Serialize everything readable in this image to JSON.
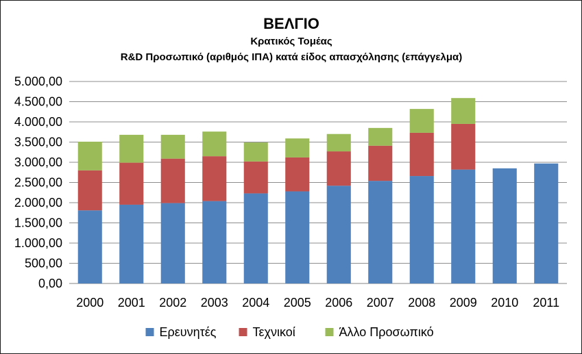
{
  "chart_data": {
    "type": "bar",
    "stacked": true,
    "title": "ΒΕΛΓΙΟ",
    "subtitle": "Κρατικός Τομέας",
    "subtitle2": "R&D  Προσωπικό (αριθμός ΙΠΑ) κατά είδος απασχόλησης (επάγγελμα)",
    "categories": [
      "2000",
      "2001",
      "2002",
      "2003",
      "2004",
      "2005",
      "2006",
      "2007",
      "2008",
      "2009",
      "2010",
      "2011"
    ],
    "series": [
      {
        "name": "Ερευνητές",
        "color": "#4f81bd",
        "values": [
          1810,
          1950,
          1990,
          2040,
          2230,
          2280,
          2420,
          2540,
          2660,
          2820,
          2850,
          2970
        ]
      },
      {
        "name": "Τεχνικοί",
        "color": "#c0504d",
        "values": [
          990,
          1040,
          1100,
          1110,
          790,
          840,
          850,
          870,
          1070,
          1130,
          null,
          null
        ]
      },
      {
        "name": "Άλλο Προσωπικό",
        "color": "#9bbb59",
        "values": [
          710,
          690,
          590,
          610,
          470,
          470,
          430,
          440,
          590,
          640,
          null,
          null
        ]
      }
    ],
    "ylim": [
      0,
      5000
    ],
    "yticks": [
      "0,00",
      "500,00",
      "1.000,00",
      "1.500,00",
      "2.000,00",
      "2.500,00",
      "3.000,00",
      "3.500,00",
      "4.000,00",
      "4.500,00",
      "5.000,00"
    ],
    "grid": true,
    "legend_position": "bottom"
  }
}
